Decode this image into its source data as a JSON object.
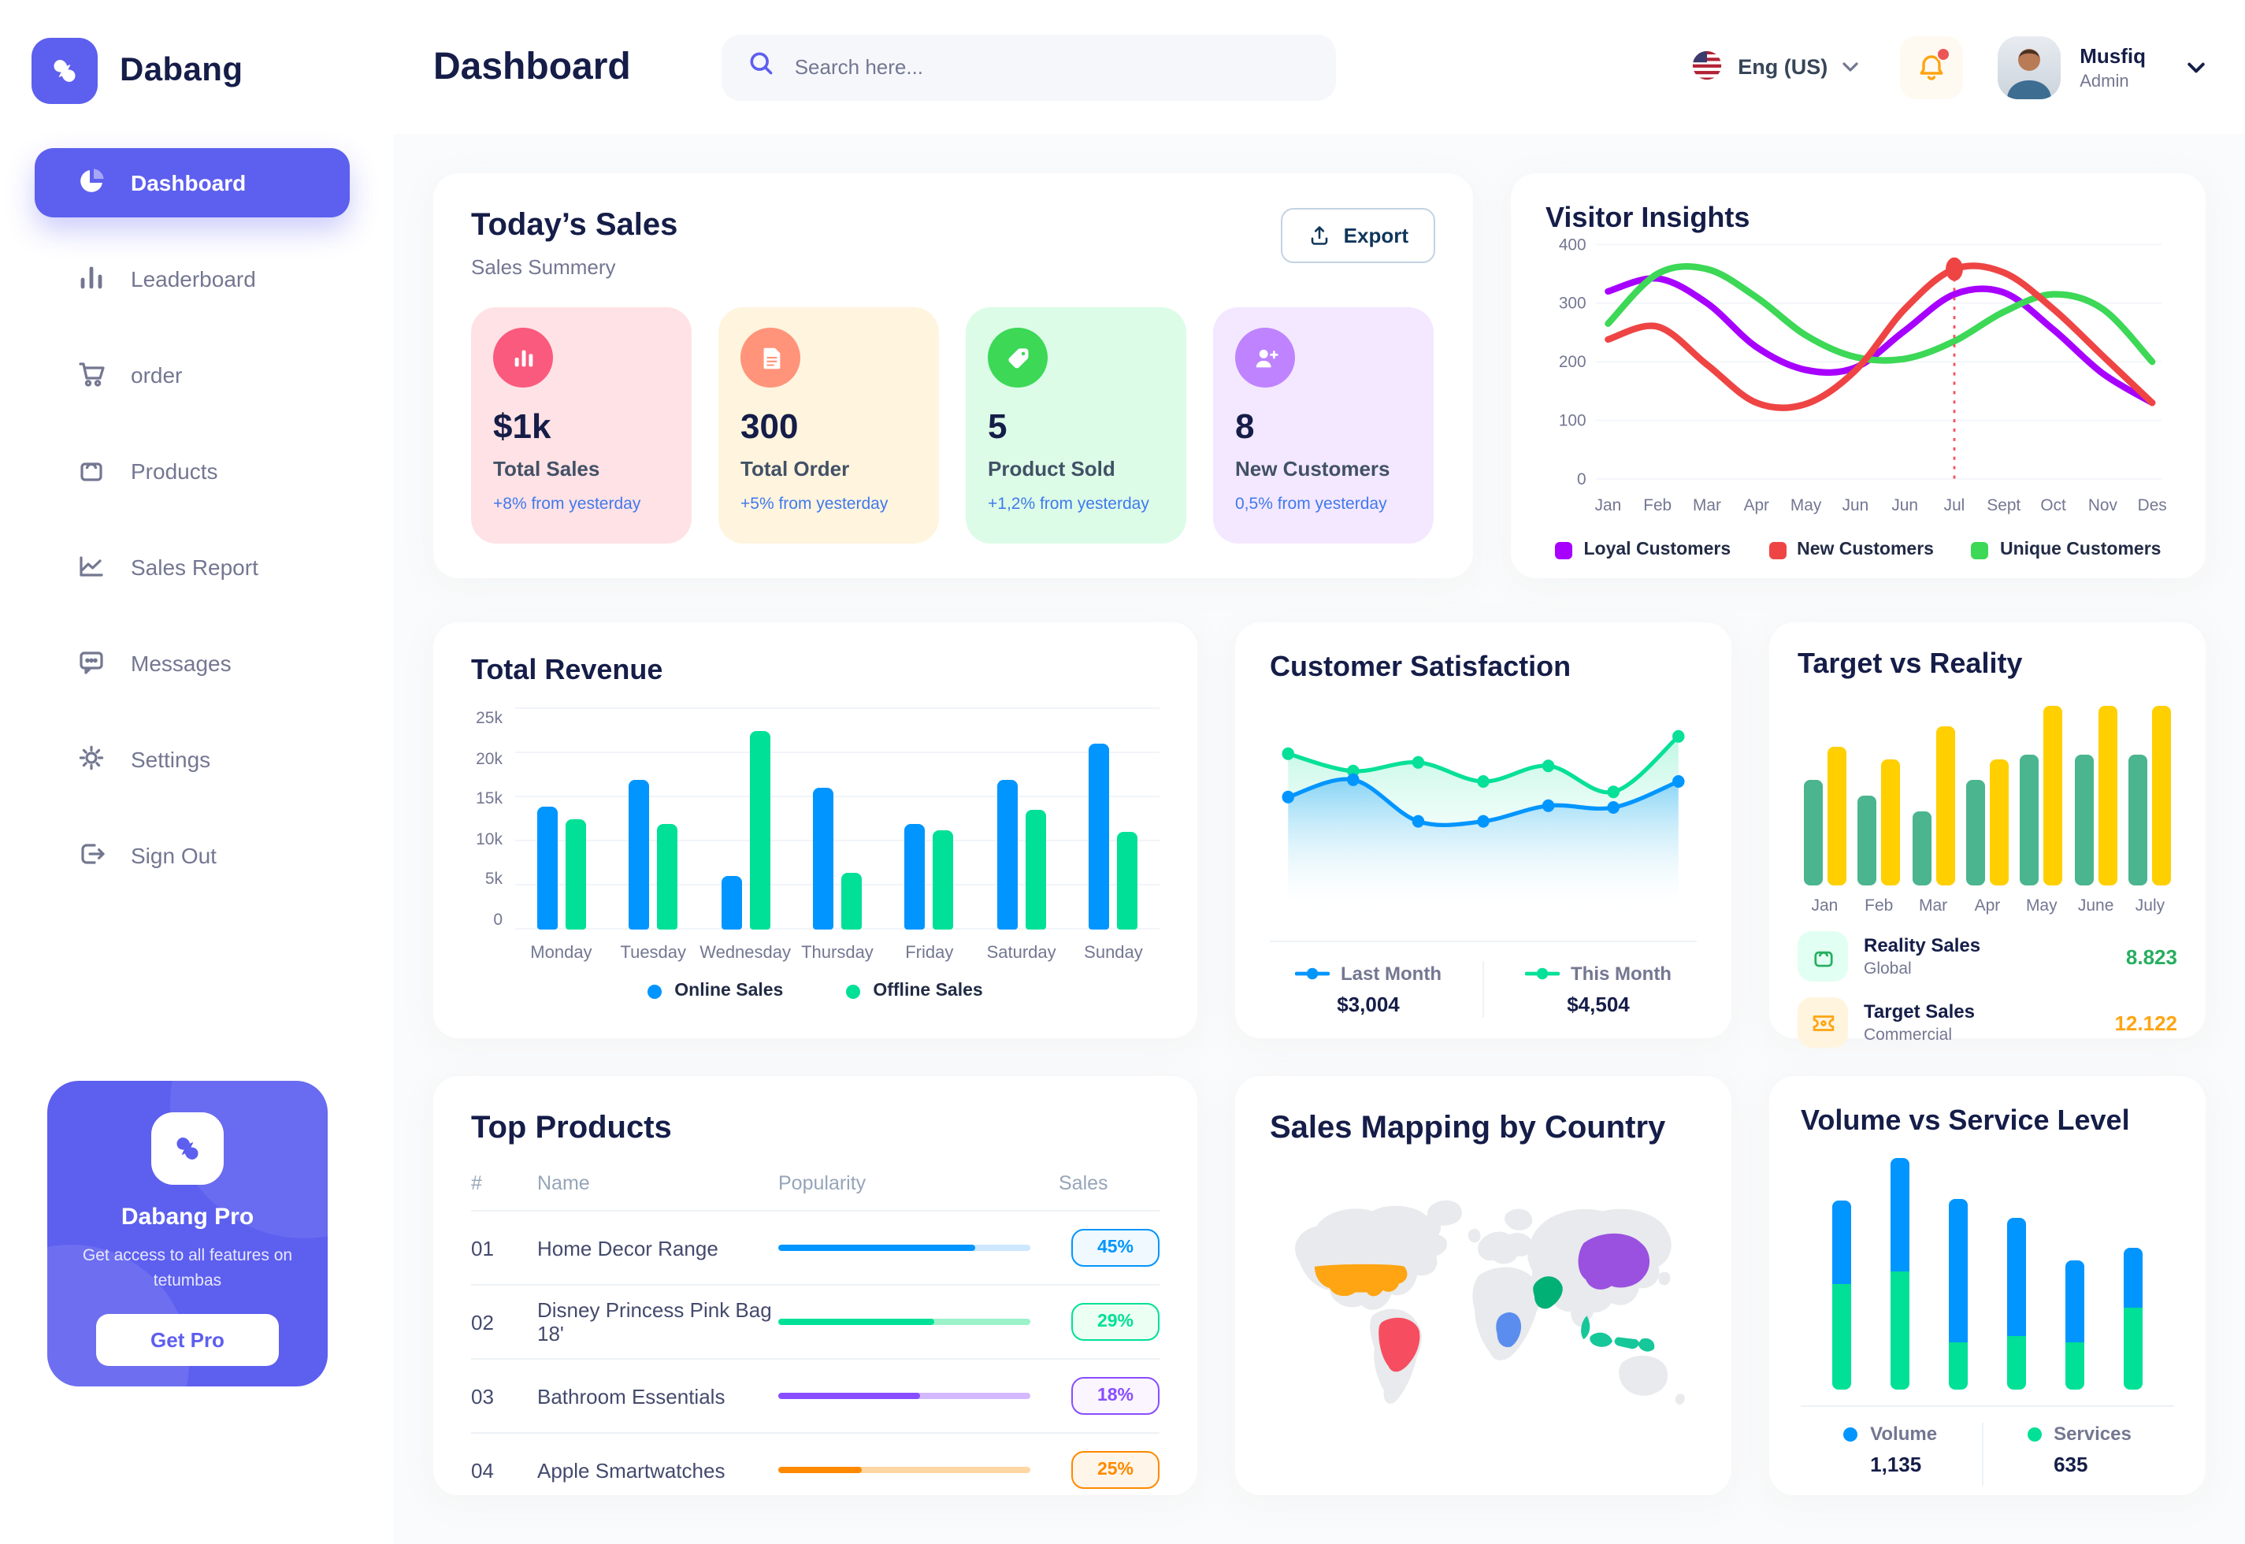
{
  "colors": {
    "accent": "#5D5FEF",
    "title": "#151D48",
    "muted": "#737791",
    "blue": "#0095FF",
    "green": "#00E096",
    "red": "#F64E60",
    "bg": "#FAFBFC"
  },
  "brand": {
    "name": "Dabang",
    "pro_title": "Dabang Pro",
    "pro_desc": "Get access to all features on tetumbas",
    "pro_button": "Get Pro"
  },
  "header": {
    "title": "Dashboard",
    "search_placeholder": "Search here...",
    "language": "Eng (US)",
    "user": {
      "name": "Musfiq",
      "role": "Admin"
    }
  },
  "sidebar": {
    "items": [
      {
        "label": "Dashboard"
      },
      {
        "label": "Leaderboard"
      },
      {
        "label": "order"
      },
      {
        "label": "Products"
      },
      {
        "label": "Sales Report"
      },
      {
        "label": "Messages"
      },
      {
        "label": "Settings"
      },
      {
        "label": "Sign Out"
      }
    ]
  },
  "icons": [
    "pie-chart-icon",
    "bar-chart-icon",
    "cart-icon",
    "bag-icon",
    "line-chart-icon",
    "chat-icon",
    "gear-icon",
    "sign-out-icon",
    "search-icon",
    "us-flag-icon",
    "bell-icon",
    "chevron-down-icon",
    "export-icon",
    "sales-icon",
    "receipt-icon",
    "tag-icon",
    "user-plus-icon",
    "ticket-icon"
  ],
  "today_sales": {
    "title": "Today’s Sales",
    "subtitle": "Sales Summery",
    "export_label": "Export",
    "cards": [
      {
        "value": "$1k",
        "label": "Total Sales",
        "delta": "+8% from yesterday",
        "bg": "#FFE2E5",
        "icon_bg": "#FA5A7D",
        "icon": "sales-icon"
      },
      {
        "value": "300",
        "label": "Total Order",
        "delta": "+5% from yesterday",
        "bg": "#FFF4DE",
        "icon_bg": "#FF947A",
        "icon": "receipt-icon"
      },
      {
        "value": "5",
        "label": "Product Sold",
        "delta": "+1,2% from yesterday",
        "bg": "#DCFCE7",
        "icon_bg": "#3CD856",
        "icon": "tag-icon"
      },
      {
        "value": "8",
        "label": "New Customers",
        "delta": "0,5% from yesterday",
        "bg": "#F3E8FF",
        "icon_bg": "#BF83FF",
        "icon": "user-plus-icon"
      }
    ]
  },
  "chart_data": [
    {
      "id": "visitor_insights",
      "type": "line",
      "title": "Visitor Insights",
      "legend_position": "bottom",
      "grid": true,
      "x": [
        "Jan",
        "Feb",
        "Mar",
        "Apr",
        "May",
        "Jun",
        "Jun",
        "Jul",
        "Sept",
        "Oct",
        "Nov",
        "Des"
      ],
      "ylim": [
        0,
        400
      ],
      "yticks": [
        0,
        100,
        200,
        300,
        400
      ],
      "series": [
        {
          "name": "Loyal Customers",
          "color": "#A700FF",
          "values": [
            320,
            342,
            300,
            225,
            186,
            190,
            253,
            315,
            318,
            255,
            180,
            130
          ]
        },
        {
          "name": "New Customers",
          "color": "#EF4444",
          "values": [
            238,
            260,
            195,
            130,
            128,
            185,
            290,
            358,
            352,
            290,
            210,
            130
          ]
        },
        {
          "name": "Unique Customers",
          "color": "#3CD856",
          "values": [
            265,
            350,
            358,
            310,
            245,
            208,
            205,
            235,
            285,
            315,
            290,
            200
          ]
        }
      ],
      "highlight": {
        "x_label": "Jul",
        "x_index": 7,
        "series": "New Customers",
        "value": 358
      }
    },
    {
      "id": "total_revenue",
      "type": "bar",
      "title": "Total Revenue",
      "legend_position": "bottom",
      "grid": true,
      "categories": [
        "Monday",
        "Tuesday",
        "Wednesday",
        "Thursday",
        "Friday",
        "Saturday",
        "Sunday"
      ],
      "ylim": [
        0,
        25000
      ],
      "yticks_labels": [
        "0",
        "5k",
        "10k",
        "15k",
        "20k",
        "25k"
      ],
      "series": [
        {
          "name": "Online Sales",
          "color": "#0095FF",
          "values": [
            14000,
            17000,
            6000,
            16000,
            12000,
            17000,
            21000
          ]
        },
        {
          "name": "Offline Sales",
          "color": "#00E096",
          "values": [
            12500,
            12000,
            22500,
            6500,
            11200,
            13500,
            11000
          ]
        }
      ]
    },
    {
      "id": "customer_satisfaction",
      "type": "area",
      "title": "Customer Satisfaction",
      "legend_position": "bottom",
      "ylim": [
        0,
        500
      ],
      "series": [
        {
          "name": "Last Month",
          "total": "$3,004",
          "color": "#0095FF",
          "values": [
            255,
            305,
            185,
            185,
            230,
            225,
            300
          ]
        },
        {
          "name": "This Month",
          "total": "$4,504",
          "color": "#07E098",
          "values": [
            380,
            330,
            355,
            300,
            345,
            270,
            430
          ]
        }
      ]
    },
    {
      "id": "target_vs_reality",
      "type": "bar",
      "title": "Target vs Reality",
      "legend_position": "bottom",
      "ylim": [
        0,
        15
      ],
      "categories": [
        "Jan",
        "Feb",
        "Mar",
        "Apr",
        "May",
        "June",
        "July"
      ],
      "series": [
        {
          "name": "Reality Sales",
          "subtitle": "Global",
          "value_label": "8.823",
          "value_color": "#27AE60",
          "icon_bg": "#E2FFF3",
          "color": "#4AB58E",
          "values": [
            8.5,
            7.3,
            6,
            8.5,
            10.5,
            10.5,
            10.5
          ]
        },
        {
          "name": "Target Sales",
          "subtitle": "Commercial",
          "value_label": "12.122",
          "value_color": "#FFA412",
          "icon_bg": "#FFF4DE",
          "color": "#FFCF00",
          "values": [
            11.2,
            10.2,
            12.8,
            10.2,
            14.5,
            14.5,
            14.5
          ]
        }
      ]
    },
    {
      "id": "volume_vs_service",
      "type": "stacked-bar",
      "title": "Volume vs Service Level",
      "legend_position": "bottom",
      "ylim": [
        0,
        100
      ],
      "note": "values are percent of plot height read from pixels",
      "series": [
        {
          "name": "Volume",
          "total": "1,135",
          "color": "#0095FF",
          "values": [
            35,
            48,
            61,
            50,
            35,
            25
          ]
        },
        {
          "name": "Services",
          "total": "635",
          "color": "#00E096",
          "values": [
            45,
            50,
            20,
            23,
            20,
            35
          ]
        }
      ]
    }
  ],
  "top_products": {
    "title": "Top Products",
    "headers": [
      "#",
      "Name",
      "Popularity",
      "Sales"
    ],
    "rows": [
      {
        "num": "01",
        "name": "Home Decor Range",
        "popularity": 78,
        "sales": "45%",
        "color": "#0095FF",
        "track": "#CDE7FF",
        "badge_bg": "#F0F9FF"
      },
      {
        "num": "02",
        "name": "Disney Princess Pink Bag 18'",
        "popularity": 62,
        "sales": "29%",
        "color": "#00E096",
        "track": "#9BF2C9",
        "badge_bg": "#EBFFF3"
      },
      {
        "num": "03",
        "name": "Bathroom Essentials",
        "popularity": 56,
        "sales": "18%",
        "color": "#884DFF",
        "track": "#D3B9FF",
        "badge_bg": "#FBF5FF"
      },
      {
        "num": "04",
        "name": "Apple Smartwatches",
        "popularity": 33,
        "sales": "25%",
        "color": "#FF8900",
        "track": "#FFD6A4",
        "badge_bg": "#FFF6E9"
      }
    ]
  },
  "sales_map": {
    "title": "Sales Mapping by Country",
    "countries": [
      {
        "name": "United States",
        "color": "#FFA412"
      },
      {
        "name": "Brazil",
        "color": "#F64E60"
      },
      {
        "name": "China",
        "color": "#9B51E0"
      },
      {
        "name": "Saudi Arabia",
        "color": "#00B074"
      },
      {
        "name": "DR Congo",
        "color": "#5A8DEE"
      },
      {
        "name": "Indonesia",
        "color": "#16C79A"
      }
    ]
  }
}
